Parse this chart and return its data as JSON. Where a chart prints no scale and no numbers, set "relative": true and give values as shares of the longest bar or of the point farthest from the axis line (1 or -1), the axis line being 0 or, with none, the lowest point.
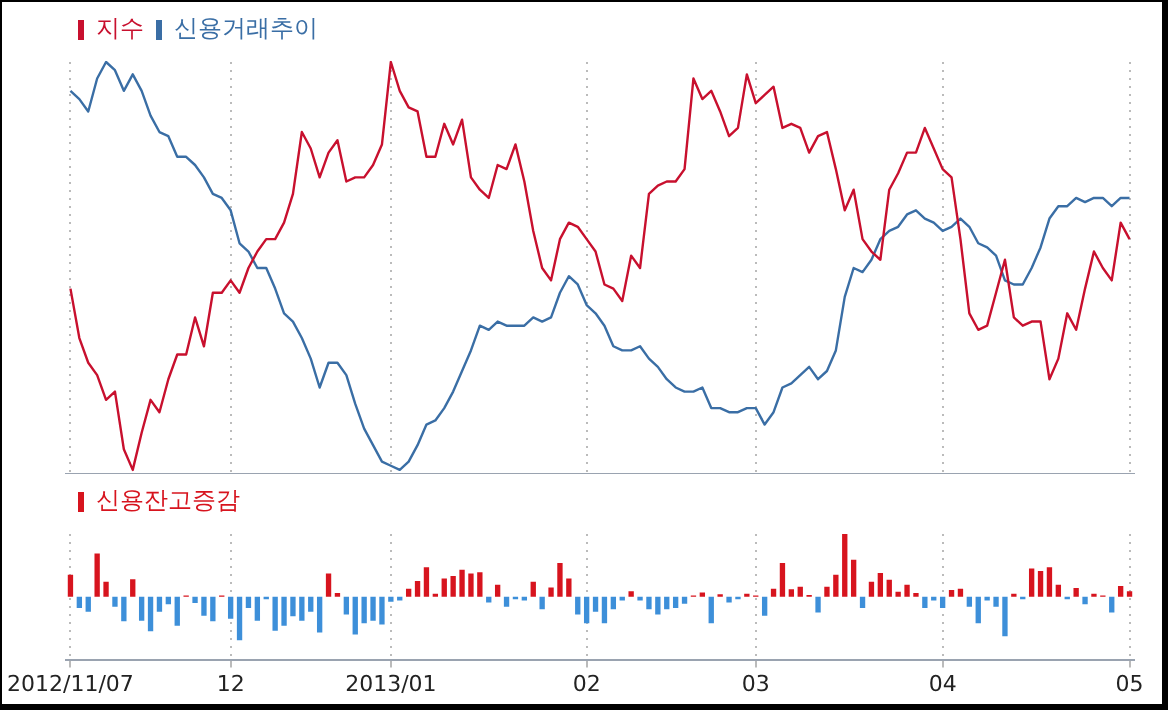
{
  "chart_data": [
    {
      "type": "line",
      "relative": true,
      "grid": "x",
      "legend": "top left",
      "tick_labels": false,
      "categories": [
        "2012/11/07",
        null,
        null,
        null,
        null,
        null,
        null,
        null,
        null,
        null,
        null,
        null,
        null,
        null,
        null,
        null,
        null,
        null,
        "12",
        null,
        null,
        null,
        null,
        null,
        null,
        null,
        null,
        null,
        null,
        null,
        null,
        null,
        null,
        null,
        null,
        null,
        "2013/01",
        null,
        null,
        null,
        null,
        null,
        null,
        null,
        null,
        null,
        null,
        null,
        null,
        null,
        null,
        null,
        null,
        null,
        null,
        null,
        null,
        null,
        "02",
        null,
        null,
        null,
        null,
        null,
        null,
        null,
        null,
        null,
        null,
        null,
        null,
        null,
        null,
        null,
        null,
        null,
        null,
        "03",
        null,
        null,
        null,
        null,
        null,
        null,
        null,
        null,
        null,
        null,
        null,
        null,
        null,
        null,
        null,
        null,
        null,
        null,
        null,
        null,
        "04",
        null,
        null,
        null,
        null,
        null,
        null,
        null,
        null,
        null,
        null,
        null,
        null,
        null,
        null,
        null,
        null,
        null,
        null,
        null,
        null,
        "05"
      ],
      "series": [
        {
          "name": "지수",
          "color": "#c8102e",
          "values": [
            0.45,
            0.33,
            0.27,
            0.24,
            0.18,
            0.2,
            0.06,
            0.01,
            0.1,
            0.18,
            0.15,
            0.23,
            0.29,
            0.29,
            0.38,
            0.31,
            0.44,
            0.44,
            0.47,
            0.44,
            0.5,
            0.54,
            0.57,
            0.57,
            0.61,
            0.68,
            0.83,
            0.79,
            0.72,
            0.78,
            0.81,
            0.71,
            0.72,
            0.72,
            0.75,
            0.8,
            1.0,
            0.93,
            0.89,
            0.88,
            0.77,
            0.77,
            0.85,
            0.8,
            0.86,
            0.72,
            0.69,
            0.67,
            0.75,
            0.74,
            0.8,
            0.71,
            0.59,
            0.5,
            0.47,
            0.57,
            0.61,
            0.6,
            0.57,
            0.54,
            0.46,
            0.45,
            0.42,
            0.53,
            0.5,
            0.68,
            0.7,
            0.71,
            0.71,
            0.74,
            0.96,
            0.91,
            0.93,
            0.88,
            0.82,
            0.84,
            0.97,
            0.9,
            0.92,
            0.94,
            0.84,
            0.85,
            0.84,
            0.78,
            0.82,
            0.83,
            0.74,
            0.64,
            0.69,
            0.57,
            0.54,
            0.52,
            0.69,
            0.73,
            0.78,
            0.78,
            0.84,
            0.79,
            0.74,
            0.72,
            0.57,
            0.39,
            0.35,
            0.36,
            0.44,
            0.52,
            0.38,
            0.36,
            0.37,
            0.37,
            0.23,
            0.28,
            0.39,
            0.35,
            0.45,
            0.54,
            0.5,
            0.47,
            0.61,
            0.57
          ]
        },
        {
          "name": "신용거래추이",
          "color": "#3a6ea5",
          "values": [
            0.93,
            0.91,
            0.88,
            0.96,
            1.0,
            0.98,
            0.93,
            0.97,
            0.93,
            0.87,
            0.83,
            0.82,
            0.77,
            0.77,
            0.75,
            0.72,
            0.68,
            0.67,
            0.64,
            0.56,
            0.54,
            0.5,
            0.5,
            0.45,
            0.39,
            0.37,
            0.33,
            0.28,
            0.21,
            0.27,
            0.27,
            0.24,
            0.17,
            0.11,
            0.07,
            0.03,
            0.02,
            0.01,
            0.03,
            0.07,
            0.12,
            0.13,
            0.16,
            0.2,
            0.25,
            0.3,
            0.36,
            0.35,
            0.37,
            0.36,
            0.36,
            0.36,
            0.38,
            0.37,
            0.38,
            0.44,
            0.48,
            0.46,
            0.41,
            0.39,
            0.36,
            0.31,
            0.3,
            0.3,
            0.31,
            0.28,
            0.26,
            0.23,
            0.21,
            0.2,
            0.2,
            0.21,
            0.16,
            0.16,
            0.15,
            0.15,
            0.16,
            0.16,
            0.12,
            0.15,
            0.21,
            0.22,
            0.24,
            0.26,
            0.23,
            0.25,
            0.3,
            0.43,
            0.5,
            0.49,
            0.52,
            0.57,
            0.59,
            0.6,
            0.63,
            0.64,
            0.62,
            0.61,
            0.59,
            0.6,
            0.62,
            0.6,
            0.56,
            0.55,
            0.53,
            0.47,
            0.46,
            0.46,
            0.5,
            0.55,
            0.62,
            0.65,
            0.65,
            0.67,
            0.66,
            0.67,
            0.67,
            0.65,
            0.67,
            0.67
          ]
        }
      ]
    },
    {
      "type": "bar",
      "relative": true,
      "grid": "x",
      "legend": "top left",
      "tick_labels": "x",
      "categories": [
        "2012/11/07",
        null,
        null,
        null,
        null,
        null,
        null,
        null,
        null,
        null,
        null,
        null,
        null,
        null,
        null,
        null,
        null,
        null,
        "12",
        null,
        null,
        null,
        null,
        null,
        null,
        null,
        null,
        null,
        null,
        null,
        null,
        null,
        null,
        null,
        null,
        null,
        "2013/01",
        null,
        null,
        null,
        null,
        null,
        null,
        null,
        null,
        null,
        null,
        null,
        null,
        null,
        null,
        null,
        null,
        null,
        null,
        null,
        null,
        null,
        "02",
        null,
        null,
        null,
        null,
        null,
        null,
        null,
        null,
        null,
        null,
        null,
        null,
        null,
        null,
        null,
        null,
        null,
        null,
        "03",
        null,
        null,
        null,
        null,
        null,
        null,
        null,
        null,
        null,
        null,
        null,
        null,
        null,
        null,
        null,
        null,
        null,
        null,
        null,
        null,
        "04",
        null,
        null,
        null,
        null,
        null,
        null,
        null,
        null,
        null,
        null,
        null,
        null,
        null,
        null,
        null,
        null,
        null,
        null,
        null,
        null,
        "05"
      ],
      "series": [
        {
          "name": "신용잔고증감",
          "color": "#d7141e",
          "values": [
            0.35,
            -0.18,
            -0.24,
            0.69,
            0.24,
            -0.16,
            -0.39,
            0.28,
            -0.38,
            -0.55,
            -0.24,
            -0.12,
            -0.46,
            0.02,
            -0.1,
            -0.3,
            -0.39,
            0.02,
            -0.35,
            -0.69,
            -0.18,
            -0.38,
            -0.04,
            -0.54,
            -0.46,
            -0.31,
            -0.38,
            -0.24,
            -0.57,
            0.37,
            0.06,
            -0.28,
            -0.6,
            -0.42,
            -0.38,
            -0.44,
            -0.08,
            -0.06,
            0.13,
            0.25,
            0.47,
            0.05,
            0.29,
            0.33,
            0.43,
            0.37,
            0.39,
            -0.09,
            0.19,
            -0.16,
            -0.04,
            -0.06,
            0.24,
            -0.2,
            0.15,
            0.54,
            0.29,
            -0.28,
            -0.42,
            -0.24,
            -0.42,
            -0.2,
            -0.06,
            0.09,
            -0.06,
            -0.2,
            -0.28,
            -0.2,
            -0.18,
            -0.11,
            0.02,
            0.07,
            -0.42,
            0.04,
            -0.09,
            -0.04,
            0.05,
            0.02,
            -0.3,
            0.13,
            0.54,
            0.12,
            0.16,
            0.03,
            -0.25,
            0.16,
            0.35,
            1,
            0.59,
            -0.18,
            0.24,
            0.38,
            0.27,
            0.08,
            0.19,
            0.06,
            -0.18,
            -0.06,
            -0.18,
            0.11,
            0.13,
            -0.16,
            -0.42,
            -0.06,
            -0.16,
            -0.63,
            0.05,
            -0.04,
            0.45,
            0.41,
            0.47,
            0.19,
            -0.04,
            0.14,
            -0.12,
            0.05,
            0.02,
            -0.25,
            0.17,
            0.09
          ],
          "colors": [
            "#d7141e",
            "#3d8fd9",
            "#3d8fd9",
            "#d7141e",
            "#d7141e",
            "#3d8fd9",
            "#3d8fd9",
            "#d7141e",
            "#3d8fd9",
            "#3d8fd9",
            "#3d8fd9",
            "#3d8fd9",
            "#3d8fd9",
            "#d7141e",
            "#3d8fd9",
            "#3d8fd9",
            "#3d8fd9",
            "#d7141e",
            "#3d8fd9",
            "#3d8fd9",
            "#3d8fd9",
            "#3d8fd9",
            "#3d8fd9",
            "#3d8fd9",
            "#3d8fd9",
            "#3d8fd9",
            "#3d8fd9",
            "#3d8fd9",
            "#3d8fd9",
            "#d7141e",
            "#d7141e",
            "#3d8fd9",
            "#3d8fd9",
            "#3d8fd9",
            "#3d8fd9",
            "#3d8fd9",
            "#3d8fd9",
            "#3d8fd9",
            "#d7141e",
            "#d7141e",
            "#d7141e",
            "#d7141e",
            "#d7141e",
            "#d7141e",
            "#d7141e",
            "#d7141e",
            "#d7141e",
            "#3d8fd9",
            "#d7141e",
            "#3d8fd9",
            "#3d8fd9",
            "#3d8fd9",
            "#d7141e",
            "#3d8fd9",
            "#d7141e",
            "#d7141e",
            "#d7141e",
            "#3d8fd9",
            "#3d8fd9",
            "#3d8fd9",
            "#3d8fd9",
            "#3d8fd9",
            "#3d8fd9",
            "#d7141e",
            "#3d8fd9",
            "#3d8fd9",
            "#3d8fd9",
            "#3d8fd9",
            "#3d8fd9",
            "#3d8fd9",
            "#d7141e",
            "#d7141e",
            "#3d8fd9",
            "#d7141e",
            "#3d8fd9",
            "#3d8fd9",
            "#d7141e",
            "#d7141e",
            "#3d8fd9",
            "#d7141e",
            "#d7141e",
            "#d7141e",
            "#d7141e",
            "#d7141e",
            "#3d8fd9",
            "#d7141e",
            "#d7141e",
            "#d7141e",
            "#d7141e",
            "#3d8fd9",
            "#d7141e",
            "#d7141e",
            "#d7141e",
            "#d7141e",
            "#d7141e",
            "#d7141e",
            "#3d8fd9",
            "#3d8fd9",
            "#3d8fd9",
            "#d7141e",
            "#d7141e",
            "#3d8fd9",
            "#3d8fd9",
            "#3d8fd9",
            "#3d8fd9",
            "#3d8fd9",
            "#d7141e",
            "#3d8fd9",
            "#d7141e",
            "#d7141e",
            "#d7141e",
            "#d7141e",
            "#3d8fd9",
            "#d7141e",
            "#3d8fd9",
            "#d7141e",
            "#d7141e",
            "#3d8fd9",
            "#d7141e",
            "#d7141e"
          ]
        }
      ]
    }
  ]
}
